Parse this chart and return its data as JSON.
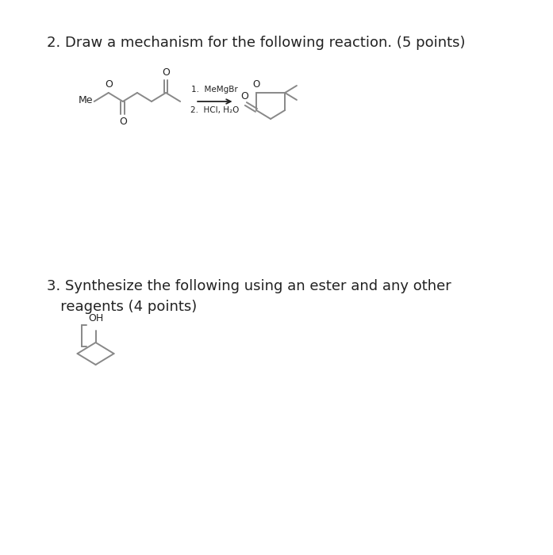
{
  "title2": "2. Draw a mechanism for the following reaction. (5 points)",
  "title3": "3. Synthesize the following using an ester and any other",
  "title3b": "   reagents (4 points)",
  "reagents_line1": "1.  MeMgBr",
  "reagents_line2": "2.  HCI, H₂O",
  "background": "#ffffff",
  "text_color": "#222222",
  "line_color": "#888888",
  "fontsize_title": 13,
  "fontsize_chem": 9,
  "lw": 1.4
}
